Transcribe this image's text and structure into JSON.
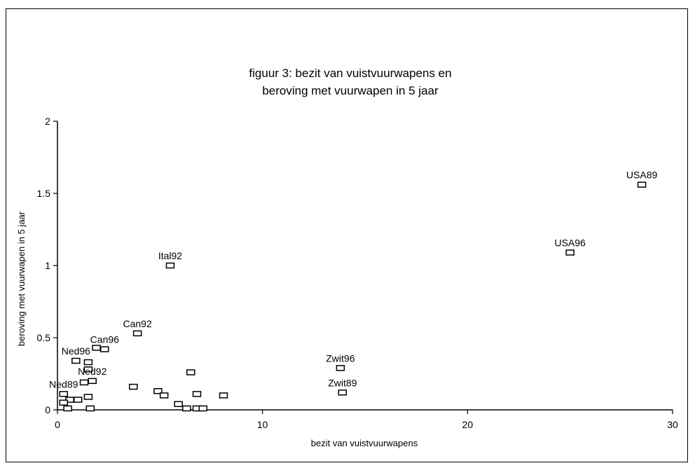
{
  "chart_data": {
    "type": "scatter",
    "title_lines": [
      "figuur 3: bezit van vuistvuurwapens en",
      "beroving met vuurwapen in 5 jaar"
    ],
    "xlabel": "bezit van vuistvuurwapens",
    "ylabel": "beroving met vuurwapen in 5 jaar",
    "xlim": [
      0,
      30
    ],
    "ylim": [
      0,
      2
    ],
    "x_ticks": [
      0,
      10,
      20,
      30
    ],
    "y_ticks": [
      0,
      0.5,
      1,
      1.5,
      2
    ],
    "y_tick_labels": [
      "0",
      "0.5",
      "1",
      "1.5",
      "2"
    ],
    "grid": false,
    "legend": "none",
    "marker": "open-rectangle",
    "points": [
      {
        "x": 28.5,
        "y": 1.56,
        "label": "USA89"
      },
      {
        "x": 25.0,
        "y": 1.09,
        "label": "USA96"
      },
      {
        "x": 5.5,
        "y": 1.0,
        "label": "Ital92"
      },
      {
        "x": 3.9,
        "y": 0.53,
        "label": "Can92"
      },
      {
        "x": 2.3,
        "y": 0.42,
        "label": "Can96"
      },
      {
        "x": 1.9,
        "y": 0.43,
        "label": ""
      },
      {
        "x": 0.9,
        "y": 0.34,
        "label": "Ned96"
      },
      {
        "x": 1.5,
        "y": 0.33,
        "label": ""
      },
      {
        "x": 1.5,
        "y": 0.28,
        "label": ""
      },
      {
        "x": 1.7,
        "y": 0.2,
        "label": "Ned92"
      },
      {
        "x": 1.3,
        "y": 0.19,
        "label": ""
      },
      {
        "x": 1.5,
        "y": 0.09,
        "label": ""
      },
      {
        "x": 0.3,
        "y": 0.11,
        "label": "Ned89"
      },
      {
        "x": 0.6,
        "y": 0.07,
        "label": ""
      },
      {
        "x": 1.0,
        "y": 0.07,
        "label": ""
      },
      {
        "x": 0.3,
        "y": 0.05,
        "label": ""
      },
      {
        "x": 0.5,
        "y": 0.01,
        "label": ""
      },
      {
        "x": 1.6,
        "y": 0.01,
        "label": ""
      },
      {
        "x": 3.7,
        "y": 0.16,
        "label": ""
      },
      {
        "x": 4.9,
        "y": 0.13,
        "label": ""
      },
      {
        "x": 5.2,
        "y": 0.1,
        "label": ""
      },
      {
        "x": 6.5,
        "y": 0.26,
        "label": ""
      },
      {
        "x": 6.8,
        "y": 0.11,
        "label": ""
      },
      {
        "x": 5.9,
        "y": 0.04,
        "label": ""
      },
      {
        "x": 6.3,
        "y": 0.01,
        "label": ""
      },
      {
        "x": 6.8,
        "y": 0.01,
        "label": ""
      },
      {
        "x": 7.1,
        "y": 0.01,
        "label": ""
      },
      {
        "x": 8.1,
        "y": 0.1,
        "label": ""
      },
      {
        "x": 13.8,
        "y": 0.29,
        "label": "Zwit96"
      },
      {
        "x": 13.9,
        "y": 0.12,
        "label": "Zwit89"
      }
    ]
  }
}
